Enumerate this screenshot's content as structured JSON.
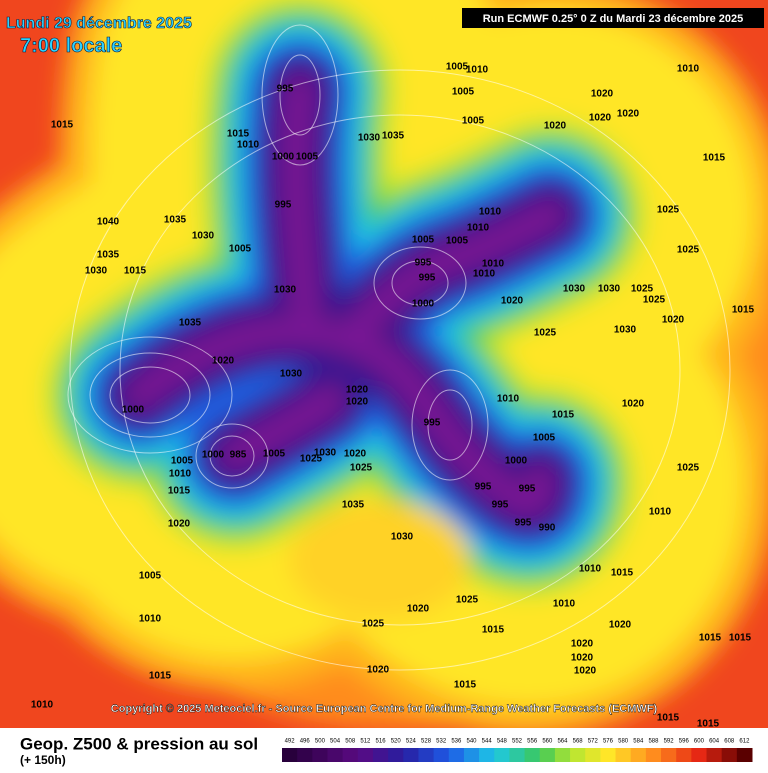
{
  "header": {
    "title": "Lundi 29 décembre 2025",
    "subtitle": "7:00 locale",
    "run": "Run ECMWF 0.25° 0 Z du Mardi 23 décembre 2025"
  },
  "footer": {
    "copyright": "Copyright © 2025 Meteociel.fr - Source European Centre for Medium-Range Weather Forecasts (ECMWF)",
    "legend_title": "Geop. Z500 & pression au sol",
    "forecast_hour": "(+ 150h)"
  },
  "scale": {
    "values": [
      492,
      496,
      500,
      504,
      508,
      512,
      516,
      520,
      524,
      528,
      532,
      536,
      540,
      544,
      548,
      552,
      556,
      560,
      564,
      568,
      572,
      576,
      580,
      584,
      588,
      592,
      596,
      600,
      604,
      608,
      612
    ]
  },
  "isobar_labels": [
    1015,
    995,
    1015,
    1010,
    1000,
    1005,
    1030,
    1035,
    1005,
    1010,
    1005,
    1005,
    1020,
    1020,
    1020,
    1020,
    1010,
    1015,
    1025,
    995,
    1040,
    1035,
    1030,
    1005,
    1030,
    1035,
    1015,
    1030,
    1035,
    1020,
    1030,
    1000,
    1005,
    1010,
    1015,
    1020,
    1005,
    1010,
    1015,
    1000,
    985,
    1005,
    1025,
    1030,
    1020,
    1025,
    1035,
    1020,
    1020,
    1005,
    1005,
    995,
    995,
    1000,
    1010,
    1010,
    1010,
    1010,
    1020,
    1030,
    1030,
    1025,
    1025,
    1025,
    1010,
    1015,
    1005,
    1000,
    995,
    995,
    995,
    995,
    990,
    995,
    1030,
    1020,
    1025,
    1015,
    1010,
    1010,
    1015,
    1020,
    1020,
    1020,
    1020,
    1025,
    1020,
    1015,
    1015,
    1015,
    1015,
    1015,
    1010,
    1010,
    1025,
    1020,
    1030,
    1025,
    1020,
    1015
  ]
}
